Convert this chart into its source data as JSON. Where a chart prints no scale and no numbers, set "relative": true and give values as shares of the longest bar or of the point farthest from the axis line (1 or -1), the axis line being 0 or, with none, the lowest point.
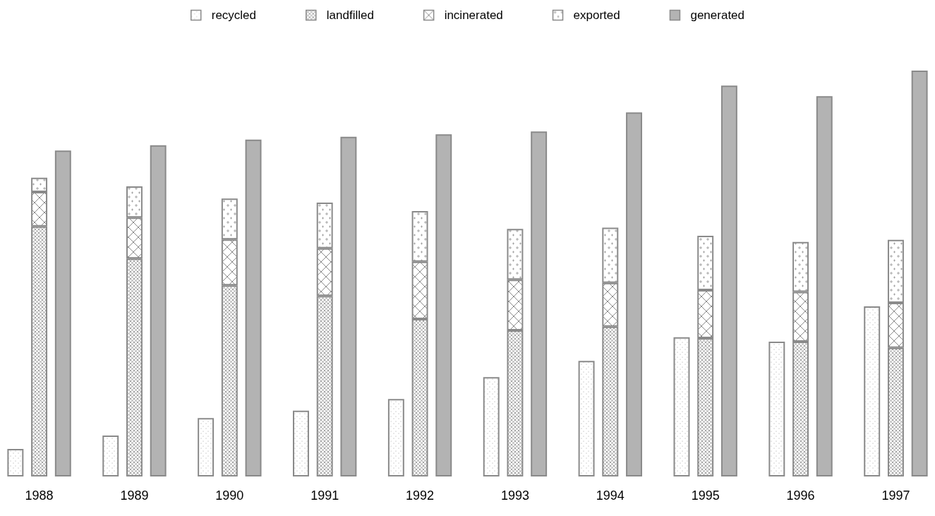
{
  "chart_data": {
    "type": "bar",
    "relative": true,
    "legend": "top",
    "grid": false,
    "stacked": true,
    "categories": [
      null,
      "1988",
      null,
      null,
      null,
      "1989",
      null,
      null,
      null,
      "1990",
      null,
      null,
      null,
      "1991",
      null,
      null,
      null,
      "1992",
      null,
      null,
      null,
      "1993",
      null,
      null,
      null,
      "1994",
      null,
      null,
      null,
      "1995",
      null,
      null,
      null,
      "1996",
      null,
      null,
      null,
      "1997",
      null
    ],
    "series": [
      {
        "name": "recycled",
        "color": "#8a8a8a",
        "values": [
          0.068,
          null,
          null,
          null,
          0.101,
          null,
          null,
          null,
          0.144,
          null,
          null,
          null,
          0.162,
          null,
          null,
          null,
          0.191,
          null,
          null,
          null,
          0.245,
          null,
          null,
          null,
          0.285,
          null,
          null,
          null,
          0.343,
          null,
          null,
          null,
          0.332,
          null,
          null,
          null,
          0.419,
          null,
          null
        ]
      },
      {
        "name": "landfilled",
        "color": "#8a8a8a",
        "values": [
          null,
          0.616,
          null,
          null,
          null,
          0.537,
          null,
          null,
          null,
          0.471,
          null,
          null,
          null,
          0.445,
          null,
          null,
          null,
          0.388,
          null,
          null,
          null,
          0.36,
          null,
          null,
          null,
          0.369,
          null,
          null,
          null,
          0.341,
          null,
          null,
          null,
          0.332,
          null,
          null,
          null,
          0.317,
          null
        ]
      },
      {
        "name": "incinerated",
        "color": "#8a8a8a",
        "values": [
          null,
          0.085,
          null,
          null,
          null,
          0.101,
          null,
          null,
          null,
          0.113,
          null,
          null,
          null,
          0.117,
          null,
          null,
          null,
          0.141,
          null,
          null,
          null,
          0.125,
          null,
          null,
          null,
          0.108,
          null,
          null,
          null,
          0.118,
          null,
          null,
          null,
          0.123,
          null,
          null,
          null,
          0.111,
          null
        ]
      },
      {
        "name": "exported",
        "color": "#8a8a8a",
        "values": [
          null,
          0.035,
          null,
          null,
          null,
          0.077,
          null,
          null,
          null,
          0.101,
          null,
          null,
          null,
          0.113,
          null,
          null,
          null,
          0.125,
          null,
          null,
          null,
          0.125,
          null,
          null,
          null,
          0.136,
          null,
          null,
          null,
          0.134,
          null,
          null,
          null,
          0.123,
          null,
          null,
          null,
          0.155,
          null
        ]
      },
      {
        "name": "generated",
        "color": "#b3b3b3",
        "values": [
          null,
          null,
          0.803,
          null,
          null,
          null,
          0.816,
          null,
          null,
          null,
          0.83,
          null,
          null,
          null,
          0.837,
          null,
          null,
          null,
          0.843,
          null,
          null,
          null,
          0.85,
          null,
          null,
          null,
          0.897,
          null,
          null,
          null,
          0.963,
          null,
          null,
          null,
          0.937,
          null,
          null,
          null,
          1
        ]
      }
    ]
  }
}
